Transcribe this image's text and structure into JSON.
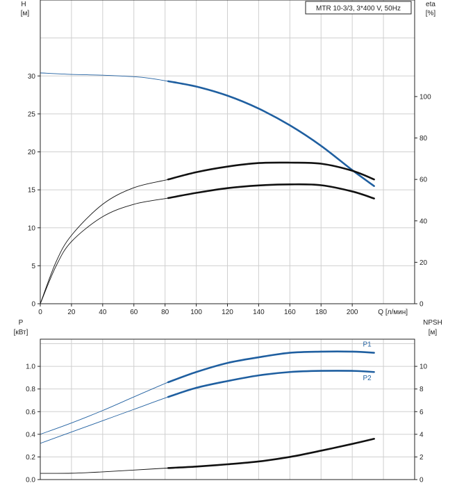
{
  "legend_box": "MTR 10-3/3, 3*400 V, 50Hz",
  "colors": {
    "blue": "#1f5fa0",
    "black": "#111111",
    "grid": "#cfcfcf",
    "axis": "#222222"
  },
  "chart_data": [
    {
      "type": "line",
      "panel": "top",
      "y_left_label": [
        "H",
        "[м]"
      ],
      "y_right_label": [
        "eta",
        "[%]"
      ],
      "x_label": "Q [л/мин]",
      "x_ticks": [
        0,
        20,
        40,
        60,
        80,
        100,
        120,
        140,
        160,
        180,
        200
      ],
      "x_tick_labels": [
        "0",
        "20",
        "40",
        "60",
        "80",
        "100",
        "120",
        "140",
        "160",
        "180",
        "200"
      ],
      "y_left_ticks": [
        0,
        5,
        10,
        15,
        20,
        25,
        30
      ],
      "y_left_tick_labels": [
        "0",
        "5",
        "10",
        "15",
        "20",
        "25",
        "30"
      ],
      "y_right_ticks": [
        0,
        20,
        40,
        60,
        80,
        100
      ],
      "y_right_tick_labels": [
        "0",
        "20",
        "40",
        "60",
        "80",
        "100"
      ],
      "xlim": [
        0,
        240
      ],
      "ylim_left": [
        0,
        40
      ],
      "ylim_right": [
        0,
        146.6
      ],
      "grid": true,
      "series": [
        {
          "axis": "left",
          "color": "blue",
          "thick_from_x": 82,
          "x": [
            0,
            20,
            40,
            60,
            70,
            82,
            100,
            120,
            140,
            160,
            180,
            200,
            214
          ],
          "y": [
            30.4,
            30.2,
            30.1,
            29.9,
            29.7,
            29.3,
            28.6,
            27.4,
            25.7,
            23.5,
            20.8,
            17.6,
            15.5
          ]
        },
        {
          "axis": "right",
          "color": "black",
          "thick_from_x": 82,
          "x": [
            0,
            10,
            20,
            40,
            60,
            82,
            100,
            120,
            140,
            160,
            180,
            200,
            214
          ],
          "y": [
            0,
            20,
            33,
            48,
            56,
            60,
            63.5,
            66.2,
            67.9,
            68.1,
            67.6,
            64.2,
            60
          ]
        },
        {
          "axis": "right",
          "color": "black",
          "thick_from_x": 82,
          "x": [
            0,
            10,
            20,
            40,
            60,
            82,
            100,
            120,
            140,
            160,
            180,
            200,
            214
          ],
          "y": [
            0,
            18,
            30,
            42,
            48,
            51,
            53.5,
            55.8,
            57.1,
            57.6,
            57.2,
            54.2,
            50.8
          ]
        }
      ]
    },
    {
      "type": "line",
      "panel": "bottom",
      "y_left_label": [
        "P",
        "[кВт]"
      ],
      "y_right_label": [
        "NPSH",
        "[м]"
      ],
      "y_left_ticks": [
        0,
        0.2,
        0.4,
        0.6,
        0.8,
        1.0
      ],
      "y_left_tick_labels": [
        "0.0",
        "0.2",
        "0.4",
        "0.6",
        "0.8",
        "1.0"
      ],
      "y_right_ticks": [
        0,
        2,
        4,
        6,
        8,
        10
      ],
      "y_right_tick_labels": [
        "0",
        "2",
        "4",
        "6",
        "8",
        "10"
      ],
      "xlim": [
        0,
        240
      ],
      "ylim_left": [
        0,
        1.24
      ],
      "ylim_right": [
        0,
        12.4
      ],
      "grid": true,
      "series": [
        {
          "name": "P1",
          "axis": "left",
          "color": "blue",
          "thick_from_x": 82,
          "x": [
            0,
            20,
            40,
            60,
            82,
            100,
            120,
            140,
            160,
            180,
            200,
            214
          ],
          "y": [
            0.4,
            0.5,
            0.61,
            0.73,
            0.86,
            0.95,
            1.03,
            1.08,
            1.12,
            1.13,
            1.13,
            1.12
          ]
        },
        {
          "name": "P2",
          "axis": "left",
          "color": "blue",
          "thick_from_x": 82,
          "x": [
            0,
            20,
            40,
            60,
            82,
            100,
            120,
            140,
            160,
            180,
            200,
            214
          ],
          "y": [
            0.32,
            0.42,
            0.52,
            0.62,
            0.73,
            0.81,
            0.87,
            0.92,
            0.95,
            0.96,
            0.96,
            0.95
          ]
        },
        {
          "axis": "right",
          "color": "black",
          "thick_from_x": 82,
          "x": [
            0,
            20,
            40,
            60,
            82,
            100,
            120,
            140,
            160,
            180,
            200,
            214
          ],
          "y": [
            0.55,
            0.56,
            0.68,
            0.84,
            1.02,
            1.15,
            1.35,
            1.6,
            2.0,
            2.55,
            3.15,
            3.6
          ]
        }
      ]
    }
  ]
}
